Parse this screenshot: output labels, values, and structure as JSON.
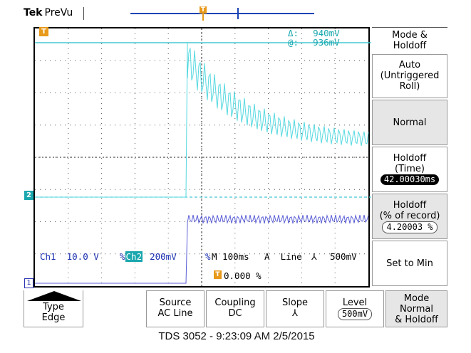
{
  "header": {
    "brand_bold": "Tek",
    "brand_rest": "PreVu",
    "trigger_position_glyph": "T"
  },
  "cursor": {
    "delta_label": "Δ:",
    "delta_value": "940mV",
    "at_label": "@:",
    "at_value": "936mV"
  },
  "markers": {
    "trigger_level_glyph": "T",
    "ch2_glyph": "2",
    "ch1_glyph": "1"
  },
  "readouts": {
    "ch1": "Ch1  10.0 V",
    "ch2_prefix": "%",
    "ch2_label": "Ch2",
    "ch2_scale": "200mV",
    "ch2_suffix": "%",
    "timebase": "M 100ms",
    "trigger_source": "A  Line",
    "trigger_slope": "⅄",
    "trigger_level": "500mV",
    "trigger_offset_glyph": "T",
    "trigger_offset": "0.000 %"
  },
  "side_menu": {
    "title_line1": "Mode &",
    "title_line2": "Holdoff",
    "auto_line1": "Auto",
    "auto_line2": "(Untriggered",
    "auto_line3": "Roll)",
    "normal": "Normal",
    "holdoff_time_line1": "Holdoff",
    "holdoff_time_line2": "(Time)",
    "holdoff_time_value": "42.00030ms",
    "holdoff_record_line1": "Holdoff",
    "holdoff_record_line2": "(% of record)",
    "holdoff_record_value": "4.20003 %",
    "set_to_min": "Set to Min"
  },
  "bottom_menu": {
    "type_line1": "Type",
    "type_line2": "Edge",
    "source_line1": "Source",
    "source_line2": "AC Line",
    "coupling_line1": "Coupling",
    "coupling_line2": "DC",
    "slope_line1": "Slope",
    "slope_line2": "⅄",
    "level_line1": "Level",
    "level_value": "500mV",
    "mode_line1": "Mode",
    "mode_line2": "Normal",
    "mode_line3": "& Holdoff"
  },
  "status": "TDS 3052 - 9:23:09 AM   2/5/2015",
  "colors": {
    "ch1_trace": "#5b5fd6",
    "ch2_trace": "#56d9e0",
    "cursor_readout": "#1aa7ae",
    "readout_blue": "#1a2fb0",
    "trigger_orange": "#e89a1a"
  }
}
